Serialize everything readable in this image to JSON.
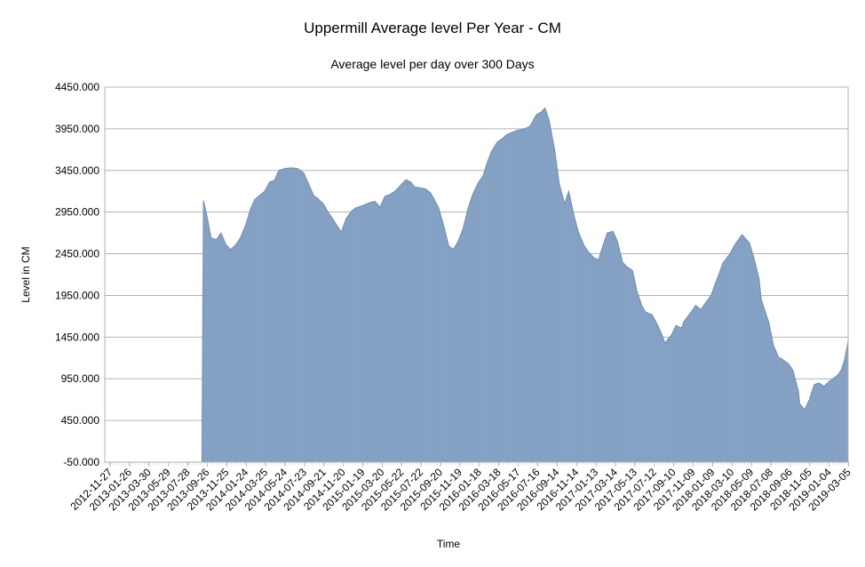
{
  "chart_data": {
    "type": "area",
    "title": "Uppermill Average level Per Year - CM",
    "subtitle": "Average level per day over 300 Days",
    "xlabel": "Time",
    "ylabel": "Level in CM",
    "ylim": [
      -50,
      4450
    ],
    "y_ticks": [
      "-50.000",
      "450.000",
      "950.000",
      "1450.000",
      "1950.000",
      "2450.000",
      "2950.000",
      "3450.000",
      "3950.000",
      "4450.000"
    ],
    "x_tick_labels": [
      "2012-11-27",
      "2013-01-26",
      "2013-03-30",
      "2013-05-29",
      "2013-07-28",
      "2013-09-26",
      "2013-11-25",
      "2014-01-24",
      "2014-03-25",
      "2014-05-24",
      "2014-07-23",
      "2014-09-21",
      "2014-11-20",
      "2015-01-19",
      "2015-03-20",
      "2015-05-22",
      "2015-07-22",
      "2015-09-20",
      "2015-11-19",
      "2016-01-18",
      "2016-03-18",
      "2016-05-17",
      "2016-07-16",
      "2016-09-14",
      "2016-11-14",
      "2017-01-13",
      "2017-03-14",
      "2017-05-13",
      "2017-07-12",
      "2017-09-10",
      "2017-11-09",
      "2018-01-09",
      "2018-03-10",
      "2018-05-09",
      "2018-07-08",
      "2018-09-06",
      "2018-11-05",
      "2019-01-04",
      "2019-03-05"
    ],
    "x_range": [
      "2012-11-27",
      "2019-04-05"
    ],
    "grid": true,
    "series": [
      {
        "color": "#8aa6c8",
        "points": [
          [
            "2012-11-27",
            -50
          ],
          [
            "2013-09-26",
            -50
          ],
          [
            "2013-10-01",
            3090
          ],
          [
            "2013-10-12",
            2900
          ],
          [
            "2013-10-25",
            2640
          ],
          [
            "2013-11-10",
            2620
          ],
          [
            "2013-11-25",
            2700
          ],
          [
            "2013-12-10",
            2560
          ],
          [
            "2013-12-25",
            2500
          ],
          [
            "2014-01-10",
            2560
          ],
          [
            "2014-01-24",
            2640
          ],
          [
            "2014-02-10",
            2800
          ],
          [
            "2014-02-25",
            2990
          ],
          [
            "2014-03-10",
            3100
          ],
          [
            "2014-03-25",
            3150
          ],
          [
            "2014-04-10",
            3200
          ],
          [
            "2014-04-25",
            3310
          ],
          [
            "2014-05-10",
            3330
          ],
          [
            "2014-05-24",
            3450
          ],
          [
            "2014-06-10",
            3470
          ],
          [
            "2014-06-25",
            3480
          ],
          [
            "2014-07-10",
            3480
          ],
          [
            "2014-07-23",
            3470
          ],
          [
            "2014-08-10",
            3420
          ],
          [
            "2014-08-25",
            3290
          ],
          [
            "2014-09-10",
            3150
          ],
          [
            "2014-09-21",
            3120
          ],
          [
            "2014-10-10",
            3050
          ],
          [
            "2014-10-25",
            2950
          ],
          [
            "2014-11-10",
            2860
          ],
          [
            "2014-11-20",
            2800
          ],
          [
            "2014-12-05",
            2710
          ],
          [
            "2014-12-20",
            2870
          ],
          [
            "2015-01-05",
            2960
          ],
          [
            "2015-01-19",
            3000
          ],
          [
            "2015-02-10",
            3030
          ],
          [
            "2015-03-01",
            3060
          ],
          [
            "2015-03-20",
            3080
          ],
          [
            "2015-04-05",
            3010
          ],
          [
            "2015-04-20",
            3140
          ],
          [
            "2015-05-05",
            3160
          ],
          [
            "2015-05-22",
            3200
          ],
          [
            "2015-06-10",
            3280
          ],
          [
            "2015-06-25",
            3340
          ],
          [
            "2015-07-10",
            3310
          ],
          [
            "2015-07-22",
            3250
          ],
          [
            "2015-08-10",
            3240
          ],
          [
            "2015-08-25",
            3230
          ],
          [
            "2015-09-10",
            3180
          ],
          [
            "2015-09-20",
            3110
          ],
          [
            "2015-10-05",
            3000
          ],
          [
            "2015-10-20",
            2800
          ],
          [
            "2015-11-05",
            2550
          ],
          [
            "2015-11-19",
            2500
          ],
          [
            "2015-12-05",
            2600
          ],
          [
            "2015-12-20",
            2750
          ],
          [
            "2016-01-05",
            3000
          ],
          [
            "2016-01-18",
            3150
          ],
          [
            "2016-02-05",
            3300
          ],
          [
            "2016-02-20",
            3380
          ],
          [
            "2016-03-05",
            3550
          ],
          [
            "2016-03-18",
            3680
          ],
          [
            "2016-04-05",
            3790
          ],
          [
            "2016-04-20",
            3830
          ],
          [
            "2016-05-05",
            3880
          ],
          [
            "2016-05-17",
            3900
          ],
          [
            "2016-06-05",
            3930
          ],
          [
            "2016-06-20",
            3940
          ],
          [
            "2016-07-05",
            3960
          ],
          [
            "2016-07-16",
            3980
          ],
          [
            "2016-08-05",
            4120
          ],
          [
            "2016-08-20",
            4150
          ],
          [
            "2016-09-01",
            4200
          ],
          [
            "2016-09-14",
            4050
          ],
          [
            "2016-10-01",
            3700
          ],
          [
            "2016-10-15",
            3300
          ],
          [
            "2016-11-01",
            3050
          ],
          [
            "2016-11-14",
            3200
          ],
          [
            "2016-12-01",
            2900
          ],
          [
            "2016-12-15",
            2700
          ],
          [
            "2017-01-01",
            2550
          ],
          [
            "2017-01-13",
            2480
          ],
          [
            "2017-02-01",
            2400
          ],
          [
            "2017-02-15",
            2380
          ],
          [
            "2017-03-01",
            2550
          ],
          [
            "2017-03-14",
            2700
          ],
          [
            "2017-04-01",
            2720
          ],
          [
            "2017-04-15",
            2600
          ],
          [
            "2017-05-01",
            2350
          ],
          [
            "2017-05-13",
            2300
          ],
          [
            "2017-06-01",
            2250
          ],
          [
            "2017-06-15",
            2000
          ],
          [
            "2017-07-01",
            1820
          ],
          [
            "2017-07-12",
            1750
          ],
          [
            "2017-08-01",
            1720
          ],
          [
            "2017-08-15",
            1620
          ],
          [
            "2017-09-01",
            1480
          ],
          [
            "2017-09-10",
            1380
          ],
          [
            "2017-10-01",
            1480
          ],
          [
            "2017-10-15",
            1590
          ],
          [
            "2017-11-01",
            1560
          ],
          [
            "2017-11-09",
            1640
          ],
          [
            "2017-12-01",
            1750
          ],
          [
            "2017-12-15",
            1830
          ],
          [
            "2018-01-01",
            1780
          ],
          [
            "2018-01-09",
            1830
          ],
          [
            "2018-02-01",
            1950
          ],
          [
            "2018-02-15",
            2100
          ],
          [
            "2018-03-01",
            2240
          ],
          [
            "2018-03-10",
            2340
          ],
          [
            "2018-04-01",
            2450
          ],
          [
            "2018-04-15",
            2550
          ],
          [
            "2018-05-01",
            2640
          ],
          [
            "2018-05-09",
            2680
          ],
          [
            "2018-06-01",
            2580
          ],
          [
            "2018-06-15",
            2400
          ],
          [
            "2018-07-01",
            2150
          ],
          [
            "2018-07-08",
            1900
          ],
          [
            "2018-08-01",
            1620
          ],
          [
            "2018-08-15",
            1350
          ],
          [
            "2018-09-01",
            1200
          ],
          [
            "2018-09-06",
            1200
          ],
          [
            "2018-10-01",
            1130
          ],
          [
            "2018-10-15",
            1050
          ],
          [
            "2018-11-01",
            800
          ],
          [
            "2018-11-05",
            650
          ],
          [
            "2018-11-20",
            580
          ],
          [
            "2018-12-05",
            700
          ],
          [
            "2018-12-20",
            880
          ],
          [
            "2019-01-04",
            900
          ],
          [
            "2019-01-20",
            860
          ],
          [
            "2019-02-05",
            920
          ],
          [
            "2019-02-20",
            960
          ],
          [
            "2019-03-05",
            1000
          ],
          [
            "2019-03-15",
            1060
          ],
          [
            "2019-03-25",
            1180
          ],
          [
            "2019-04-05",
            1400
          ]
        ]
      }
    ]
  }
}
